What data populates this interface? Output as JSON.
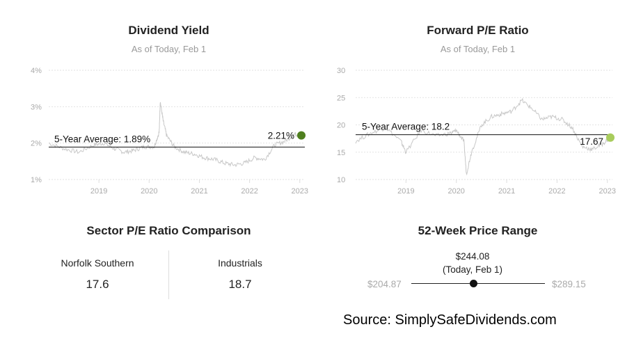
{
  "dividend_panel": {
    "title": "Dividend Yield",
    "subtitle": "As of Today, Feb 1"
  },
  "pe_panel": {
    "title": "Forward P/E Ratio",
    "subtitle": "As of Today, Feb 1"
  },
  "sector": {
    "title": "Sector P/E Ratio Comparison",
    "company_name": "Norfolk Southern",
    "company_value": "17.6",
    "sector_name": "Industrials",
    "sector_value": "18.7"
  },
  "range": {
    "title": "52-Week Price Range",
    "current_price": "$244.08",
    "current_note": "(Today, Feb 1)",
    "low": "$204.87",
    "high": "$289.15",
    "position_fraction": 0.465
  },
  "source": "Source: SimplySafeDividends.com",
  "colors": {
    "line": "#c8c8c8",
    "dividend_marker": "#4f7f1f",
    "pe_marker": "#a8cc5c",
    "grid": "#e2e2e2"
  },
  "chart_data": [
    {
      "type": "line",
      "title": "Dividend Yield",
      "subtitle": "As of Today, Feb 1",
      "y_ticks": [
        "4%",
        "3%",
        "2%",
        "1%"
      ],
      "x_ticks": [
        "2019",
        "2020",
        "2021",
        "2022",
        "2023"
      ],
      "ylim": [
        1,
        4
      ],
      "xlim": [
        2018.0,
        2023.1
      ],
      "average": 1.89,
      "average_label": "5-Year Average: 1.89%",
      "current": 2.21,
      "current_label": "2.21%",
      "x": [
        2018.0,
        2018.3,
        2018.6,
        2018.9,
        2019.1,
        2019.3,
        2019.5,
        2019.7,
        2019.9,
        2020.1,
        2020.2,
        2020.22,
        2020.28,
        2020.35,
        2020.5,
        2020.7,
        2020.9,
        2021.1,
        2021.3,
        2021.5,
        2021.7,
        2021.9,
        2022.1,
        2022.3,
        2022.5,
        2022.7,
        2022.9,
        2023.05
      ],
      "y": [
        2.0,
        1.85,
        1.75,
        1.95,
        2.0,
        1.85,
        1.75,
        1.8,
        1.9,
        1.9,
        2.3,
        3.15,
        2.6,
        2.2,
        1.9,
        1.75,
        1.7,
        1.6,
        1.55,
        1.45,
        1.4,
        1.45,
        1.6,
        1.55,
        1.95,
        2.05,
        2.25,
        2.2
      ]
    },
    {
      "type": "line",
      "title": "Forward P/E Ratio",
      "subtitle": "As of Today, Feb 1",
      "y_ticks": [
        "30",
        "25",
        "20",
        "15",
        "10"
      ],
      "x_ticks": [
        "2019",
        "2020",
        "2021",
        "2022",
        "2023"
      ],
      "ylim": [
        10,
        30
      ],
      "xlim": [
        2018.0,
        2023.1
      ],
      "average": 18.2,
      "average_label": "5-Year Average: 18.2",
      "current": 17.67,
      "current_label": "17.67",
      "x": [
        2018.0,
        2018.3,
        2018.6,
        2018.9,
        2019.0,
        2019.3,
        2019.6,
        2019.9,
        2020.0,
        2020.15,
        2020.2,
        2020.3,
        2020.5,
        2020.7,
        2020.9,
        2021.1,
        2021.3,
        2021.5,
        2021.7,
        2021.9,
        2022.1,
        2022.3,
        2022.5,
        2022.7,
        2022.9,
        2023.05
      ],
      "y": [
        17.0,
        18.5,
        19.5,
        17.0,
        15.0,
        19.0,
        18.0,
        18.5,
        19.0,
        17.0,
        11.0,
        15.0,
        20.0,
        21.5,
        22.0,
        22.5,
        24.5,
        23.0,
        21.0,
        21.5,
        21.0,
        19.5,
        16.0,
        15.5,
        16.5,
        17.6
      ]
    }
  ]
}
